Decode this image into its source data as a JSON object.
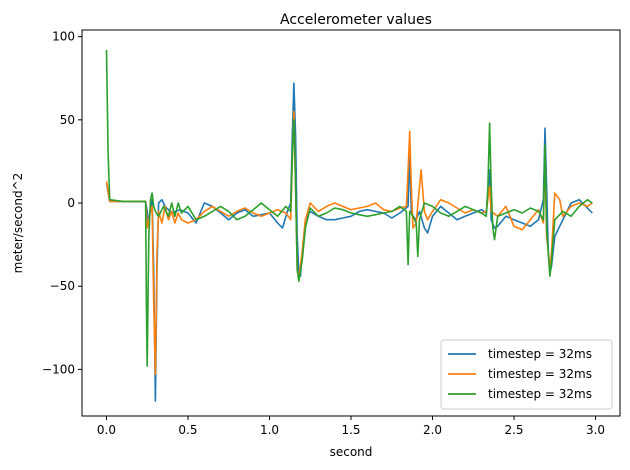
{
  "chart_data": {
    "type": "line",
    "title": "Accelerometer values",
    "xlabel": "second",
    "ylabel": "meter/second^2",
    "xlim": [
      -0.15,
      3.15
    ],
    "ylim": [
      -128,
      104
    ],
    "xticks": [
      0.0,
      0.5,
      1.0,
      1.5,
      2.0,
      2.5,
      3.0
    ],
    "xtick_labels": [
      "0.0",
      "0.5",
      "1.0",
      "1.5",
      "2.0",
      "2.5",
      "3.0"
    ],
    "yticks": [
      -100,
      -50,
      0,
      50,
      100
    ],
    "ytick_labels": [
      "−100",
      "−50",
      "0",
      "50",
      "100"
    ],
    "grid": false,
    "legend_position": "lower right",
    "series": [
      {
        "name": "timestep = 32ms",
        "color": "#1f77b4",
        "points": [
          [
            0.0,
            12
          ],
          [
            0.02,
            1
          ],
          [
            0.1,
            1
          ],
          [
            0.2,
            1
          ],
          [
            0.24,
            1
          ],
          [
            0.25,
            -5
          ],
          [
            0.26,
            -12
          ],
          [
            0.27,
            -3
          ],
          [
            0.28,
            2
          ],
          [
            0.29,
            -40
          ],
          [
            0.3,
            -119
          ],
          [
            0.31,
            -40
          ],
          [
            0.32,
            0
          ],
          [
            0.34,
            2
          ],
          [
            0.36,
            -2
          ],
          [
            0.4,
            -6
          ],
          [
            0.45,
            -4
          ],
          [
            0.5,
            -6
          ],
          [
            0.55,
            -12
          ],
          [
            0.6,
            0
          ],
          [
            0.65,
            -2
          ],
          [
            0.7,
            -6
          ],
          [
            0.75,
            -10
          ],
          [
            0.8,
            -6
          ],
          [
            0.85,
            -4
          ],
          [
            0.9,
            -8
          ],
          [
            0.95,
            -7
          ],
          [
            1.0,
            -6
          ],
          [
            1.05,
            -12
          ],
          [
            1.08,
            -15
          ],
          [
            1.11,
            -5
          ],
          [
            1.13,
            0
          ],
          [
            1.14,
            40
          ],
          [
            1.15,
            72
          ],
          [
            1.16,
            40
          ],
          [
            1.17,
            -20
          ],
          [
            1.18,
            -42
          ],
          [
            1.19,
            -44
          ],
          [
            1.2,
            -30
          ],
          [
            1.22,
            -10
          ],
          [
            1.25,
            -5
          ],
          [
            1.3,
            -8
          ],
          [
            1.35,
            -10
          ],
          [
            1.4,
            -10
          ],
          [
            1.45,
            -9
          ],
          [
            1.5,
            -8
          ],
          [
            1.55,
            -5
          ],
          [
            1.6,
            -4
          ],
          [
            1.65,
            -5
          ],
          [
            1.7,
            -6
          ],
          [
            1.75,
            -9
          ],
          [
            1.8,
            -6
          ],
          [
            1.85,
            -2
          ],
          [
            1.86,
            30
          ],
          [
            1.87,
            -5
          ],
          [
            1.88,
            -8
          ],
          [
            1.9,
            -10
          ],
          [
            1.92,
            -5
          ],
          [
            1.95,
            -15
          ],
          [
            1.97,
            -18
          ],
          [
            2.0,
            -8
          ],
          [
            2.05,
            -2
          ],
          [
            2.1,
            -6
          ],
          [
            2.15,
            -10
          ],
          [
            2.2,
            -8
          ],
          [
            2.25,
            -6
          ],
          [
            2.3,
            -4
          ],
          [
            2.33,
            -6
          ],
          [
            2.35,
            20
          ],
          [
            2.36,
            -10
          ],
          [
            2.38,
            -15
          ],
          [
            2.4,
            -14
          ],
          [
            2.45,
            -8
          ],
          [
            2.5,
            -10
          ],
          [
            2.55,
            -12
          ],
          [
            2.6,
            -14
          ],
          [
            2.65,
            -10
          ],
          [
            2.68,
            2
          ],
          [
            2.69,
            45
          ],
          [
            2.7,
            10
          ],
          [
            2.71,
            -30
          ],
          [
            2.72,
            -42
          ],
          [
            2.73,
            -38
          ],
          [
            2.75,
            -20
          ],
          [
            2.8,
            -10
          ],
          [
            2.85,
            0
          ],
          [
            2.9,
            2
          ],
          [
            2.95,
            -3
          ],
          [
            2.98,
            -6
          ]
        ]
      },
      {
        "name": "timestep = 32ms",
        "color": "#ff7f0e",
        "points": [
          [
            0.0,
            13
          ],
          [
            0.02,
            1
          ],
          [
            0.1,
            1
          ],
          [
            0.2,
            1
          ],
          [
            0.24,
            1
          ],
          [
            0.25,
            -15
          ],
          [
            0.27,
            -5
          ],
          [
            0.28,
            -2
          ],
          [
            0.29,
            -60
          ],
          [
            0.3,
            -103
          ],
          [
            0.31,
            -30
          ],
          [
            0.32,
            -5
          ],
          [
            0.34,
            -12
          ],
          [
            0.36,
            -2
          ],
          [
            0.38,
            -10
          ],
          [
            0.4,
            -5
          ],
          [
            0.42,
            -12
          ],
          [
            0.44,
            -6
          ],
          [
            0.46,
            -10
          ],
          [
            0.5,
            -12
          ],
          [
            0.55,
            -10
          ],
          [
            0.6,
            -5
          ],
          [
            0.65,
            -2
          ],
          [
            0.7,
            -5
          ],
          [
            0.75,
            -8
          ],
          [
            0.8,
            -5
          ],
          [
            0.85,
            -3
          ],
          [
            0.9,
            -6
          ],
          [
            0.95,
            -8
          ],
          [
            1.0,
            -6
          ],
          [
            1.05,
            -4
          ],
          [
            1.1,
            -6
          ],
          [
            1.13,
            -10
          ],
          [
            1.14,
            25
          ],
          [
            1.15,
            55
          ],
          [
            1.16,
            10
          ],
          [
            1.17,
            -40
          ],
          [
            1.18,
            -45
          ],
          [
            1.2,
            -30
          ],
          [
            1.22,
            -10
          ],
          [
            1.25,
            0
          ],
          [
            1.3,
            -5
          ],
          [
            1.35,
            -2
          ],
          [
            1.4,
            0
          ],
          [
            1.45,
            -2
          ],
          [
            1.5,
            -4
          ],
          [
            1.55,
            -3
          ],
          [
            1.6,
            -2
          ],
          [
            1.65,
            0
          ],
          [
            1.7,
            -4
          ],
          [
            1.75,
            -5
          ],
          [
            1.8,
            -3
          ],
          [
            1.84,
            -2
          ],
          [
            1.85,
            20
          ],
          [
            1.86,
            43
          ],
          [
            1.87,
            10
          ],
          [
            1.88,
            -15
          ],
          [
            1.9,
            -12
          ],
          [
            1.92,
            10
          ],
          [
            1.93,
            20
          ],
          [
            1.95,
            -5
          ],
          [
            1.97,
            -10
          ],
          [
            2.0,
            -5
          ],
          [
            2.05,
            2
          ],
          [
            2.1,
            0
          ],
          [
            2.15,
            -3
          ],
          [
            2.2,
            -6
          ],
          [
            2.25,
            -4
          ],
          [
            2.3,
            -6
          ],
          [
            2.33,
            -5
          ],
          [
            2.35,
            10
          ],
          [
            2.36,
            -5
          ],
          [
            2.4,
            -8
          ],
          [
            2.45,
            -2
          ],
          [
            2.5,
            -14
          ],
          [
            2.55,
            -16
          ],
          [
            2.6,
            -10
          ],
          [
            2.65,
            -4
          ],
          [
            2.68,
            -12
          ],
          [
            2.69,
            30
          ],
          [
            2.7,
            -20
          ],
          [
            2.72,
            -38
          ],
          [
            2.73,
            -30
          ],
          [
            2.75,
            6
          ],
          [
            2.78,
            2
          ],
          [
            2.8,
            -8
          ],
          [
            2.85,
            -2
          ],
          [
            2.9,
            0
          ],
          [
            2.95,
            -2
          ],
          [
            2.98,
            0
          ]
        ]
      },
      {
        "name": "timestep = 32ms",
        "color": "#2ca02c",
        "points": [
          [
            0.0,
            92
          ],
          [
            0.01,
            30
          ],
          [
            0.02,
            2
          ],
          [
            0.1,
            1
          ],
          [
            0.2,
            1
          ],
          [
            0.24,
            1
          ],
          [
            0.245,
            -60
          ],
          [
            0.25,
            -98
          ],
          [
            0.26,
            -20
          ],
          [
            0.27,
            2
          ],
          [
            0.28,
            6
          ],
          [
            0.29,
            -2
          ],
          [
            0.3,
            -5
          ],
          [
            0.32,
            -8
          ],
          [
            0.35,
            -2
          ],
          [
            0.38,
            -8
          ],
          [
            0.4,
            0
          ],
          [
            0.42,
            -8
          ],
          [
            0.44,
            0
          ],
          [
            0.46,
            -6
          ],
          [
            0.5,
            -2
          ],
          [
            0.55,
            -10
          ],
          [
            0.6,
            -8
          ],
          [
            0.65,
            -5
          ],
          [
            0.7,
            -2
          ],
          [
            0.75,
            -5
          ],
          [
            0.8,
            -10
          ],
          [
            0.85,
            -8
          ],
          [
            0.9,
            -4
          ],
          [
            0.95,
            0
          ],
          [
            1.0,
            -4
          ],
          [
            1.05,
            -8
          ],
          [
            1.1,
            -2
          ],
          [
            1.13,
            -5
          ],
          [
            1.14,
            30
          ],
          [
            1.15,
            50
          ],
          [
            1.16,
            10
          ],
          [
            1.17,
            -40
          ],
          [
            1.18,
            -47
          ],
          [
            1.2,
            -35
          ],
          [
            1.22,
            -15
          ],
          [
            1.25,
            -3
          ],
          [
            1.3,
            -8
          ],
          [
            1.35,
            -6
          ],
          [
            1.4,
            -3
          ],
          [
            1.45,
            -4
          ],
          [
            1.5,
            -6
          ],
          [
            1.55,
            -7
          ],
          [
            1.6,
            -8
          ],
          [
            1.65,
            -7
          ],
          [
            1.7,
            -6
          ],
          [
            1.75,
            -5
          ],
          [
            1.8,
            -2
          ],
          [
            1.84,
            -5
          ],
          [
            1.85,
            -37
          ],
          [
            1.86,
            -5
          ],
          [
            1.88,
            -8
          ],
          [
            1.9,
            -12
          ],
          [
            1.91,
            -32
          ],
          [
            1.92,
            -10
          ],
          [
            1.95,
            0
          ],
          [
            2.0,
            -2
          ],
          [
            2.05,
            -6
          ],
          [
            2.1,
            -8
          ],
          [
            2.15,
            -5
          ],
          [
            2.2,
            -2
          ],
          [
            2.25,
            -4
          ],
          [
            2.3,
            -6
          ],
          [
            2.33,
            -8
          ],
          [
            2.34,
            10
          ],
          [
            2.35,
            48
          ],
          [
            2.36,
            10
          ],
          [
            2.37,
            -15
          ],
          [
            2.38,
            -22
          ],
          [
            2.4,
            -8
          ],
          [
            2.45,
            -6
          ],
          [
            2.5,
            -4
          ],
          [
            2.55,
            -6
          ],
          [
            2.6,
            -3
          ],
          [
            2.65,
            -5
          ],
          [
            2.68,
            -10
          ],
          [
            2.69,
            35
          ],
          [
            2.7,
            -15
          ],
          [
            2.72,
            -44
          ],
          [
            2.73,
            -35
          ],
          [
            2.75,
            -10
          ],
          [
            2.8,
            -5
          ],
          [
            2.85,
            -8
          ],
          [
            2.9,
            -2
          ],
          [
            2.95,
            2
          ],
          [
            2.98,
            0
          ]
        ]
      }
    ]
  }
}
